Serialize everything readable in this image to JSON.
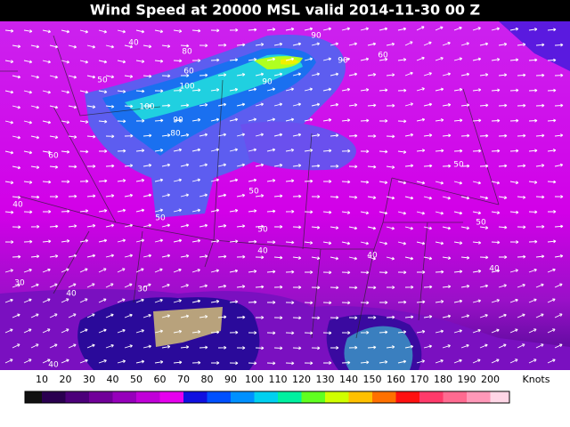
{
  "header": {
    "title": "Wind Speed at 20000 MSL valid 2014-11-30 00 Z"
  },
  "map": {
    "contour_labels": [
      "40",
      "50",
      "60",
      "90",
      "100",
      "100",
      "90",
      "90",
      "80",
      "60",
      "50",
      "50",
      "40",
      "40",
      "50",
      "40",
      "40",
      "30",
      "40",
      "50",
      "50",
      "40",
      "30",
      "60",
      "90",
      "80"
    ]
  },
  "legend": {
    "ticks": [
      10,
      20,
      30,
      40,
      50,
      60,
      70,
      80,
      90,
      100,
      110,
      120,
      130,
      140,
      150,
      160,
      170,
      180,
      190,
      200
    ],
    "unit": "Knots",
    "colors": [
      "#111111",
      "#2a0050",
      "#4c007a",
      "#700099",
      "#9600bb",
      "#c000d8",
      "#e600ee",
      "#1010e0",
      "#0050ff",
      "#0090ff",
      "#00d0f0",
      "#00f0a0",
      "#60ff20",
      "#d0ff00",
      "#ffc000",
      "#ff7000",
      "#ff1010",
      "#ff3a6a",
      "#ff6a90",
      "#ff98b8",
      "#ffd6e6"
    ]
  }
}
